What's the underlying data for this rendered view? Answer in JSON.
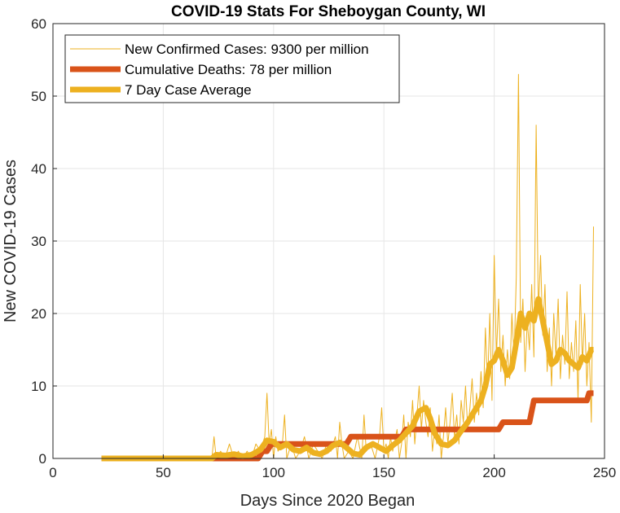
{
  "chart_data": {
    "type": "line",
    "title": "COVID-19 Stats For Sheboygan County, WI",
    "xlabel": "Days Since 2020 Began",
    "ylabel": "New COVID-19 Cases",
    "xlim": [
      0,
      250
    ],
    "ylim": [
      0,
      60
    ],
    "xticks": [
      0,
      50,
      100,
      150,
      200,
      250
    ],
    "yticks": [
      0,
      10,
      20,
      30,
      40,
      50,
      60
    ],
    "grid": true,
    "legend_position": "top-left",
    "series": [
      {
        "name": "New Confirmed Cases: 9300 per million",
        "color": "#EDB120",
        "style": "thin",
        "points": [
          [
            22,
            0
          ],
          [
            30,
            0
          ],
          [
            40,
            0
          ],
          [
            50,
            0
          ],
          [
            60,
            0
          ],
          [
            70,
            0
          ],
          [
            72,
            0
          ],
          [
            73,
            3
          ],
          [
            74,
            0
          ],
          [
            76,
            1
          ],
          [
            78,
            0
          ],
          [
            80,
            2
          ],
          [
            82,
            0
          ],
          [
            84,
            1
          ],
          [
            86,
            0
          ],
          [
            88,
            1
          ],
          [
            90,
            0
          ],
          [
            92,
            2
          ],
          [
            94,
            1
          ],
          [
            96,
            3
          ],
          [
            97,
            9
          ],
          [
            98,
            2
          ],
          [
            99,
            4
          ],
          [
            100,
            0
          ],
          [
            101,
            3
          ],
          [
            102,
            1
          ],
          [
            104,
            2
          ],
          [
            105,
            6
          ],
          [
            106,
            0
          ],
          [
            108,
            2
          ],
          [
            110,
            0
          ],
          [
            112,
            1
          ],
          [
            114,
            3
          ],
          [
            116,
            0
          ],
          [
            118,
            2
          ],
          [
            120,
            1
          ],
          [
            122,
            0
          ],
          [
            124,
            2
          ],
          [
            126,
            1
          ],
          [
            128,
            3
          ],
          [
            129,
            0
          ],
          [
            130,
            5
          ],
          [
            131,
            2
          ],
          [
            132,
            0
          ],
          [
            134,
            1
          ],
          [
            136,
            0
          ],
          [
            138,
            3
          ],
          [
            140,
            0
          ],
          [
            141,
            6
          ],
          [
            142,
            1
          ],
          [
            144,
            2
          ],
          [
            146,
            0
          ],
          [
            148,
            3
          ],
          [
            149,
            7
          ],
          [
            150,
            1
          ],
          [
            151,
            2
          ],
          [
            152,
            0
          ],
          [
            153,
            3
          ],
          [
            154,
            1
          ],
          [
            156,
            4
          ],
          [
            157,
            0
          ],
          [
            158,
            2
          ],
          [
            159,
            6
          ],
          [
            160,
            0
          ],
          [
            161,
            5
          ],
          [
            162,
            3
          ],
          [
            163,
            8
          ],
          [
            164,
            2
          ],
          [
            165,
            6
          ],
          [
            166,
            10
          ],
          [
            167,
            4
          ],
          [
            168,
            8
          ],
          [
            169,
            5
          ],
          [
            170,
            3
          ],
          [
            171,
            7
          ],
          [
            172,
            1
          ],
          [
            173,
            4
          ],
          [
            174,
            2
          ],
          [
            175,
            6
          ],
          [
            176,
            0
          ],
          [
            177,
            3
          ],
          [
            178,
            7
          ],
          [
            179,
            2
          ],
          [
            180,
            5
          ],
          [
            181,
            9
          ],
          [
            182,
            3
          ],
          [
            183,
            6
          ],
          [
            184,
            2
          ],
          [
            185,
            8
          ],
          [
            186,
            5
          ],
          [
            187,
            10
          ],
          [
            188,
            4
          ],
          [
            189,
            7
          ],
          [
            190,
            11
          ],
          [
            191,
            5
          ],
          [
            192,
            9
          ],
          [
            193,
            6
          ],
          [
            194,
            12
          ],
          [
            195,
            7
          ],
          [
            196,
            18
          ],
          [
            197,
            10
          ],
          [
            198,
            20
          ],
          [
            199,
            8
          ],
          [
            200,
            28
          ],
          [
            201,
            14
          ],
          [
            202,
            22
          ],
          [
            203,
            12
          ],
          [
            204,
            17
          ],
          [
            205,
            10
          ],
          [
            206,
            15
          ],
          [
            207,
            11
          ],
          [
            208,
            20
          ],
          [
            209,
            14
          ],
          [
            210,
            25
          ],
          [
            211,
            53
          ],
          [
            212,
            16
          ],
          [
            213,
            22
          ],
          [
            214,
            12
          ],
          [
            215,
            19
          ],
          [
            216,
            15
          ],
          [
            217,
            24
          ],
          [
            218,
            14
          ],
          [
            219,
            46
          ],
          [
            220,
            20
          ],
          [
            221,
            28
          ],
          [
            222,
            17
          ],
          [
            223,
            24
          ],
          [
            224,
            12
          ],
          [
            225,
            18
          ],
          [
            226,
            10
          ],
          [
            227,
            20
          ],
          [
            228,
            14
          ],
          [
            229,
            22
          ],
          [
            230,
            11
          ],
          [
            231,
            17
          ],
          [
            232,
            13
          ],
          [
            233,
            23
          ],
          [
            234,
            11
          ],
          [
            235,
            16
          ],
          [
            236,
            12
          ],
          [
            237,
            19
          ],
          [
            238,
            8
          ],
          [
            239,
            24
          ],
          [
            240,
            13
          ],
          [
            241,
            20
          ],
          [
            242,
            10
          ],
          [
            243,
            16
          ],
          [
            244,
            5
          ],
          [
            245,
            32
          ]
        ]
      },
      {
        "name": "Cumulative Deaths: 78 per million",
        "color": "#D95319",
        "style": "thick",
        "points": [
          [
            22,
            0
          ],
          [
            93,
            0
          ],
          [
            95,
            1
          ],
          [
            97,
            1
          ],
          [
            99,
            2
          ],
          [
            133,
            2
          ],
          [
            135,
            3
          ],
          [
            158,
            3
          ],
          [
            160,
            4
          ],
          [
            202,
            4
          ],
          [
            204,
            5
          ],
          [
            216,
            5
          ],
          [
            218,
            8
          ],
          [
            242,
            8
          ],
          [
            243,
            9
          ],
          [
            245,
            9
          ]
        ]
      },
      {
        "name": "7 Day Case Average",
        "color": "#EDB120",
        "style": "thick",
        "points": [
          [
            22,
            0
          ],
          [
            60,
            0
          ],
          [
            72,
            0
          ],
          [
            74,
            0.5
          ],
          [
            78,
            0.4
          ],
          [
            82,
            0.6
          ],
          [
            86,
            0.3
          ],
          [
            90,
            0.5
          ],
          [
            94,
            1.2
          ],
          [
            97,
            2.5
          ],
          [
            100,
            2.3
          ],
          [
            103,
            1.5
          ],
          [
            106,
            2
          ],
          [
            109,
            1.2
          ],
          [
            112,
            1
          ],
          [
            115,
            1.5
          ],
          [
            118,
            0.8
          ],
          [
            121,
            0.6
          ],
          [
            124,
            1
          ],
          [
            127,
            1.8
          ],
          [
            130,
            2.2
          ],
          [
            133,
            1.5
          ],
          [
            136,
            0.7
          ],
          [
            139,
            0.5
          ],
          [
            142,
            1.5
          ],
          [
            145,
            2
          ],
          [
            148,
            1.5
          ],
          [
            151,
            1
          ],
          [
            154,
            1.8
          ],
          [
            157,
            2.5
          ],
          [
            160,
            3.5
          ],
          [
            163,
            4.5
          ],
          [
            166,
            6.5
          ],
          [
            169,
            7
          ],
          [
            171,
            5.5
          ],
          [
            173,
            3.5
          ],
          [
            176,
            2
          ],
          [
            179,
            1.8
          ],
          [
            182,
            2.5
          ],
          [
            185,
            3.8
          ],
          [
            188,
            5
          ],
          [
            191,
            6.5
          ],
          [
            194,
            8
          ],
          [
            196,
            10
          ],
          [
            198,
            13
          ],
          [
            200,
            13.5
          ],
          [
            202,
            15
          ],
          [
            204,
            13.5
          ],
          [
            206,
            11.5
          ],
          [
            208,
            12.5
          ],
          [
            210,
            16
          ],
          [
            212,
            20
          ],
          [
            214,
            18
          ],
          [
            216,
            20
          ],
          [
            218,
            19
          ],
          [
            220,
            22
          ],
          [
            222,
            19
          ],
          [
            224,
            16
          ],
          [
            226,
            13
          ],
          [
            228,
            13.5
          ],
          [
            230,
            15
          ],
          [
            232,
            14.5
          ],
          [
            234,
            13.5
          ],
          [
            236,
            13
          ],
          [
            238,
            12.5
          ],
          [
            240,
            14
          ],
          [
            242,
            13.5
          ],
          [
            244,
            15
          ],
          [
            245,
            15
          ]
        ]
      }
    ]
  }
}
